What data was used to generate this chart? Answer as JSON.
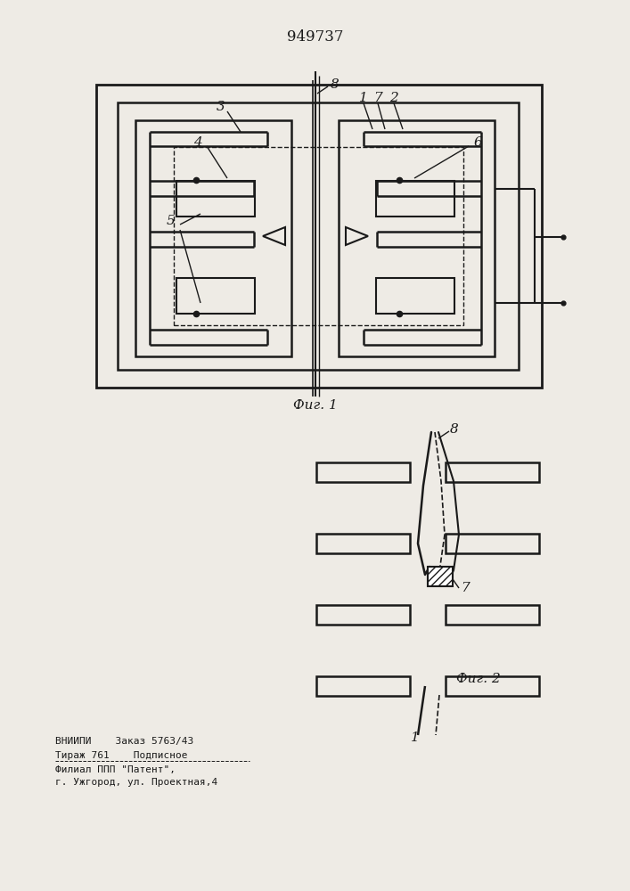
{
  "title": "949737",
  "fig1_caption": "Фиг. 1",
  "fig2_caption": "Фиг. 2",
  "bottom_text_line1": "ВНИИПИ    Заказ 5763/43",
  "bottom_text_line2": "Тираж 761    Подписное",
  "bottom_text_line3": "Филиал ППП \"Патент\",",
  "bottom_text_line4": "г. Ужгород, ул. Проектная,4",
  "bg_color": "#eeebe5",
  "line_color": "#1a1a1a"
}
